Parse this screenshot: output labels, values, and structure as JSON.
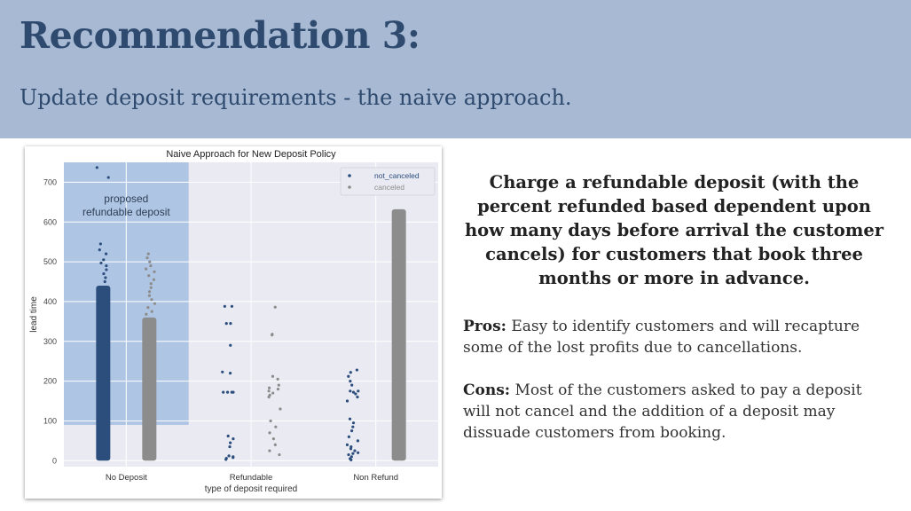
{
  "slide": {
    "title": "Recommendation 3:",
    "subtitle": "Update deposit requirements - the naive approach.",
    "colors": {
      "header_bg": "#a7b9d3",
      "title_text": "#2e4a6e"
    }
  },
  "chart_data": {
    "type": "scatter",
    "title": "Naive Approach for New Deposit Policy",
    "xlabel": "type of deposit required",
    "ylabel": "lead time",
    "categories": [
      "No Deposit",
      "Refundable",
      "Non Refund"
    ],
    "yticks": [
      0,
      100,
      200,
      300,
      400,
      500,
      600,
      700
    ],
    "ylim": [
      -15,
      750
    ],
    "grid": true,
    "legend": {
      "placement": "top-right",
      "entries": [
        "not_canceled",
        "canceled"
      ]
    },
    "annotation": {
      "text_lines": [
        "proposed",
        "refundable deposit"
      ],
      "category_span": [
        "No Deposit"
      ],
      "y_from": 90,
      "y_to": 750,
      "color": "#a9c1e2"
    },
    "series": [
      {
        "name": "not_canceled",
        "color": "#2c4e7d",
        "points": {
          "No Deposit": {
            "dense_range": [
              0,
              440
            ],
            "values": [
              737,
              712,
              545,
              530,
              520,
              505,
              497,
              490,
              480,
              470,
              460,
              450
            ]
          },
          "Refundable": {
            "values": [
              388,
              388,
              345,
              345,
              290,
              223,
              220,
              172,
              172,
              172,
              172,
              62,
              55,
              45,
              35,
              12,
              10,
              8,
              6,
              3
            ]
          },
          "Non Refund": {
            "values": [
              228,
              222,
              212,
              200,
              190,
              175,
              175,
              172,
              168,
              160,
              150,
              105,
              95,
              85,
              75,
              60,
              50,
              40,
              35,
              30,
              25,
              20,
              18,
              15,
              10,
              5,
              2
            ]
          }
        }
      },
      {
        "name": "canceled",
        "color": "#8c8c8c",
        "points": {
          "No Deposit": {
            "dense_range": [
              0,
              360
            ],
            "values": [
              520,
              510,
              500,
              490,
              482,
              475,
              465,
              455,
              445,
              435,
              425,
              415,
              405,
              395,
              385,
              375,
              368
            ]
          },
          "Refundable": {
            "values": [
              386,
              318,
              316,
              212,
              205,
              190,
              183,
              180,
              175,
              170,
              165,
              160,
              130,
              100,
              85,
              70,
              55,
              40,
              25,
              15
            ]
          },
          "Non Refund": {
            "dense_range": [
              0,
              632
            ],
            "values": []
          }
        }
      }
    ]
  },
  "text": {
    "headline": "Charge a refundable deposit (with the percent refunded based dependent upon how many days before arrival the customer cancels) for customers that book three months or more in advance.",
    "pros_label": "Pros:",
    "pros_text": " Easy to identify customers and will recapture some of the lost profits due to cancellations.",
    "cons_label": "Cons:",
    "cons_text": " Most of the customers asked to pay a deposit will not cancel and the addition of a deposit may dissuade customers from booking."
  }
}
